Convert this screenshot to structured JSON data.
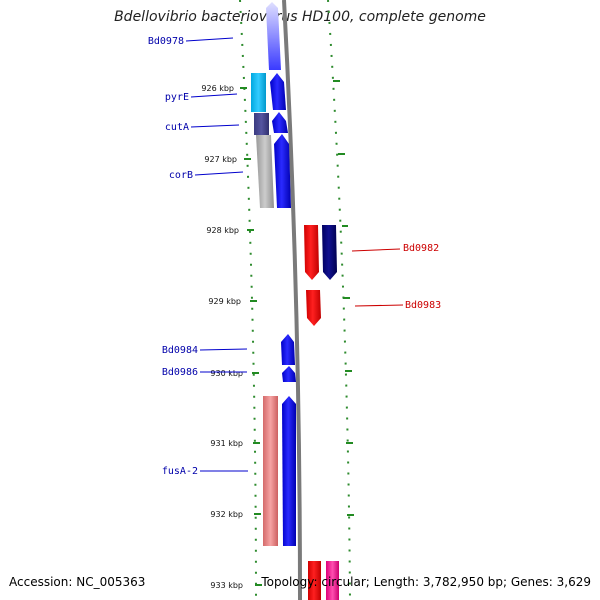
{
  "title": "Bdellovibrio bacteriovorus HD100, complete genome",
  "footer": {
    "accession": "Accession: NC_005363",
    "summary": "Topology: circular; Length: 3,782,950 bp; Genes: 3,629"
  },
  "colors": {
    "forward": "#0000ff",
    "reverse": "#ff0000",
    "label_forward": "#0000aa",
    "label_reverse": "#cc0000",
    "tick": "#228b22",
    "axis": "#808080"
  },
  "scale_ticks": [
    {
      "label": "926 kbp"
    },
    {
      "label": "927 kbp"
    },
    {
      "label": "928 kbp"
    },
    {
      "label": "929 kbp"
    },
    {
      "label": "930 kbp"
    },
    {
      "label": "931 kbp"
    },
    {
      "label": "932 kbp"
    },
    {
      "label": "933 kbp"
    }
  ],
  "gene_labels": [
    {
      "name": "Bd0978",
      "strand": "forward"
    },
    {
      "name": "pyrE",
      "strand": "forward"
    },
    {
      "name": "cutA",
      "strand": "forward"
    },
    {
      "name": "corB",
      "strand": "forward"
    },
    {
      "name": "Bd0982",
      "strand": "reverse"
    },
    {
      "name": "Bd0983",
      "strand": "reverse"
    },
    {
      "name": "Bd0984",
      "strand": "forward"
    },
    {
      "name": "Bd0986",
      "strand": "forward"
    },
    {
      "name": "fusA-2",
      "strand": "forward"
    }
  ]
}
